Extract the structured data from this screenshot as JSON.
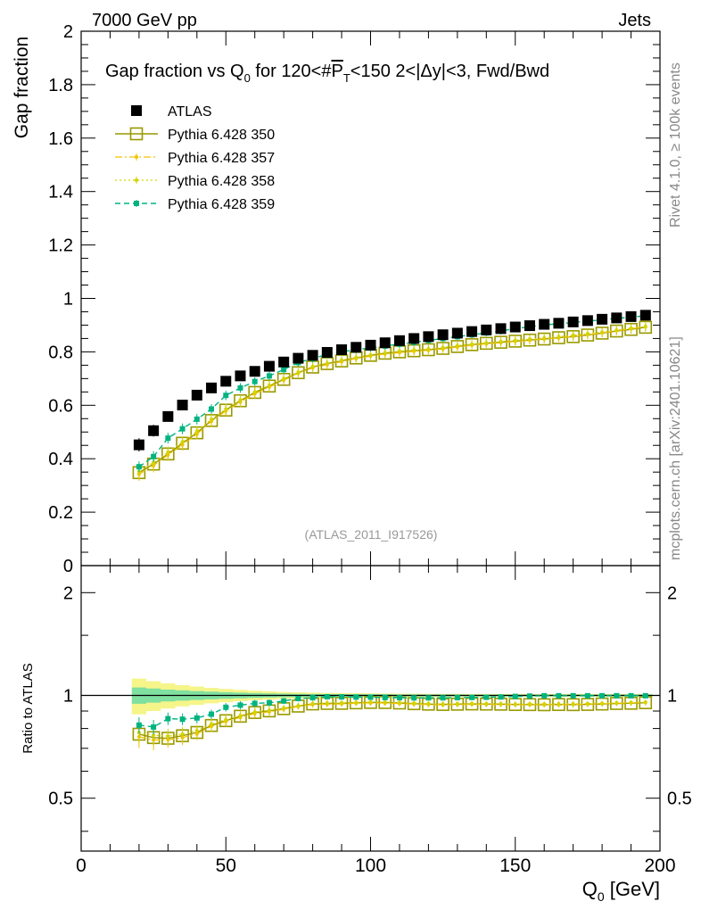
{
  "header": {
    "left": "7000 GeV pp",
    "right": "Jets"
  },
  "side_labels": {
    "rivet": "Rivet 4.1.0, ≥ 100k events",
    "mcplots": "mcplots.cern.ch [arXiv:2401.10621]"
  },
  "chart_data": {
    "type": "scatter",
    "title": "Gap fraction vs Q₀ for 120<#P̅T<150  2<|Δy|<3, Fwd/Bwd",
    "title_parts": {
      "lead": "Gap fraction vs Q",
      "sub0": "0",
      "mid": " for 120<#",
      "pbar": "P",
      "subT": "T",
      "tail": "<150  2<|Δy|<3, Fwd/Bwd"
    },
    "watermark": "(ATLAS_2011_I917526)",
    "xlabel": "Q₀ [GeV]",
    "xlabel_parts": {
      "lead": "Q",
      "sub": "0",
      "tail": " [GeV]"
    },
    "ylabel": "Gap fraction",
    "ratio_ylabel": "Ratio to ATLAS",
    "xlim": [
      0,
      200
    ],
    "ylim": [
      0,
      2
    ],
    "ratio_ylim": [
      0.35,
      2.4
    ],
    "x_ticks": [
      "0",
      "50",
      "100",
      "150",
      "200"
    ],
    "y_ticks": [
      "0",
      "0.2",
      "0.4",
      "0.6",
      "0.8",
      "1",
      "1.2",
      "1.4",
      "1.6",
      "1.8",
      "2"
    ],
    "ratio_ticks": [
      "0.5",
      "1",
      "2"
    ],
    "x": [
      20,
      25,
      30,
      35,
      40,
      45,
      50,
      55,
      60,
      65,
      70,
      75,
      80,
      85,
      90,
      95,
      100,
      105,
      110,
      115,
      120,
      125,
      130,
      135,
      140,
      145,
      150,
      155,
      160,
      165,
      170,
      175,
      180,
      185,
      190,
      195
    ],
    "series": [
      {
        "name": "ATLAS",
        "color": "#000000",
        "values": [
          0.452,
          0.505,
          0.558,
          0.601,
          0.638,
          0.665,
          0.69,
          0.71,
          0.727,
          0.746,
          0.762,
          0.776,
          0.787,
          0.798,
          0.808,
          0.817,
          0.825,
          0.834,
          0.842,
          0.85,
          0.857,
          0.864,
          0.87,
          0.876,
          0.882,
          0.887,
          0.893,
          0.898,
          0.903,
          0.907,
          0.912,
          0.917,
          0.922,
          0.927,
          0.932,
          0.937
        ],
        "errors": [
          0.025,
          0.022,
          0.019,
          0.017,
          0.015,
          0.014,
          0.013,
          0.012,
          0.011,
          0.011,
          0.01,
          0.01,
          0.009,
          0.009,
          0.009,
          0.008,
          0.008,
          0.008,
          0.008,
          0.007,
          0.007,
          0.007,
          0.007,
          0.007,
          0.007,
          0.006,
          0.006,
          0.006,
          0.006,
          0.006,
          0.006,
          0.006,
          0.006,
          0.006,
          0.006,
          0.006
        ]
      },
      {
        "name": "Pythia 6.428 350",
        "color": "#999900",
        "values": [
          0.348,
          0.38,
          0.418,
          0.458,
          0.497,
          0.543,
          0.582,
          0.617,
          0.648,
          0.672,
          0.697,
          0.722,
          0.743,
          0.756,
          0.766,
          0.777,
          0.787,
          0.795,
          0.8,
          0.804,
          0.808,
          0.813,
          0.82,
          0.827,
          0.832,
          0.836,
          0.84,
          0.844,
          0.848,
          0.853,
          0.857,
          0.863,
          0.87,
          0.878,
          0.884,
          0.892
        ],
        "errors": [
          0.02,
          0.02,
          0.02,
          0.02,
          0.02,
          0.02,
          0.02,
          0.02,
          0.02,
          0.02,
          0.015,
          0.015,
          0.015,
          0.015,
          0.015,
          0.015,
          0.015,
          0.015,
          0.015,
          0.015,
          0.015,
          0.015,
          0.015,
          0.015,
          0.015,
          0.015,
          0.015,
          0.015,
          0.015,
          0.015,
          0.015,
          0.015,
          0.015,
          0.015,
          0.015,
          0.015
        ]
      },
      {
        "name": "Pythia 6.428 357",
        "color": "#f2c200",
        "values": [
          0.342,
          0.374,
          0.414,
          0.452,
          0.492,
          0.54,
          0.579,
          0.612,
          0.643,
          0.668,
          0.694,
          0.72,
          0.74,
          0.752,
          0.763,
          0.775,
          0.784,
          0.792,
          0.797,
          0.802,
          0.806,
          0.811,
          0.818,
          0.825,
          0.83,
          0.834,
          0.839,
          0.843,
          0.848,
          0.852,
          0.858,
          0.864,
          0.871,
          0.879,
          0.886,
          0.894
        ],
        "errors": [
          0.025,
          0.025,
          0.022,
          0.022,
          0.02,
          0.02,
          0.02,
          0.018,
          0.018,
          0.018,
          0.015,
          0.015,
          0.015,
          0.015,
          0.015,
          0.015,
          0.015,
          0.015,
          0.015,
          0.015,
          0.015,
          0.015,
          0.015,
          0.015,
          0.015,
          0.015,
          0.015,
          0.015,
          0.015,
          0.015,
          0.015,
          0.015,
          0.015,
          0.015,
          0.015,
          0.015
        ]
      },
      {
        "name": "Pythia 6.428 358",
        "color": "#d4d400",
        "values": [
          0.352,
          0.386,
          0.424,
          0.463,
          0.503,
          0.548,
          0.586,
          0.62,
          0.65,
          0.675,
          0.7,
          0.724,
          0.745,
          0.758,
          0.769,
          0.779,
          0.789,
          0.797,
          0.803,
          0.807,
          0.811,
          0.816,
          0.823,
          0.829,
          0.834,
          0.839,
          0.843,
          0.848,
          0.852,
          0.857,
          0.862,
          0.868,
          0.874,
          0.881,
          0.888,
          0.895
        ],
        "errors": [
          0.025,
          0.025,
          0.022,
          0.022,
          0.02,
          0.02,
          0.02,
          0.018,
          0.018,
          0.018,
          0.015,
          0.015,
          0.015,
          0.015,
          0.015,
          0.015,
          0.015,
          0.015,
          0.015,
          0.015,
          0.015,
          0.015,
          0.015,
          0.015,
          0.015,
          0.015,
          0.015,
          0.015,
          0.015,
          0.015,
          0.015,
          0.015,
          0.015,
          0.015,
          0.015,
          0.015
        ]
      },
      {
        "name": "Pythia 6.428 359",
        "color": "#00b380",
        "values": [
          0.37,
          0.408,
          0.477,
          0.512,
          0.548,
          0.586,
          0.637,
          0.665,
          0.689,
          0.71,
          0.734,
          0.76,
          0.775,
          0.791,
          0.8,
          0.808,
          0.815,
          0.822,
          0.829,
          0.836,
          0.843,
          0.85,
          0.857,
          0.864,
          0.871,
          0.878,
          0.887,
          0.894,
          0.901,
          0.905,
          0.91,
          0.915,
          0.92,
          0.925,
          0.93,
          0.935
        ],
        "errors": [
          0.02,
          0.02,
          0.02,
          0.02,
          0.02,
          0.018,
          0.018,
          0.018,
          0.016,
          0.016,
          0.015,
          0.015,
          0.015,
          0.015,
          0.014,
          0.014,
          0.014,
          0.014,
          0.014,
          0.014,
          0.013,
          0.013,
          0.013,
          0.013,
          0.013,
          0.013,
          0.013,
          0.013,
          0.013,
          0.013,
          0.013,
          0.013,
          0.013,
          0.013,
          0.013,
          0.013
        ]
      }
    ],
    "ratio": {
      "reference_line": 1,
      "band_inner": [
        0.055,
        0.048,
        0.04,
        0.035,
        0.03,
        0.026,
        0.022,
        0.019,
        0.016,
        0.014,
        0.012,
        0.011,
        0.01,
        0.009,
        0.009,
        0.008,
        0.008,
        0.008,
        0.007,
        0.007,
        0.007,
        0.007,
        0.007,
        0.006,
        0.006,
        0.006,
        0.006,
        0.006,
        0.006,
        0.006,
        0.006,
        0.006,
        0.006,
        0.006,
        0.006,
        0.006
      ],
      "band_outer": [
        0.12,
        0.1,
        0.085,
        0.072,
        0.062,
        0.052,
        0.045,
        0.038,
        0.032,
        0.028,
        0.024,
        0.021,
        0.019,
        0.017,
        0.016,
        0.015,
        0.014,
        0.013,
        0.012,
        0.012,
        0.011,
        0.011,
        0.011,
        0.01,
        0.01,
        0.01,
        0.01,
        0.01,
        0.01,
        0.01,
        0.01,
        0.01,
        0.01,
        0.01,
        0.01,
        0.01
      ],
      "band_inner_color": "#7fe0a0",
      "band_outer_color": "#f5f58a"
    },
    "legend_position": "top-left"
  }
}
